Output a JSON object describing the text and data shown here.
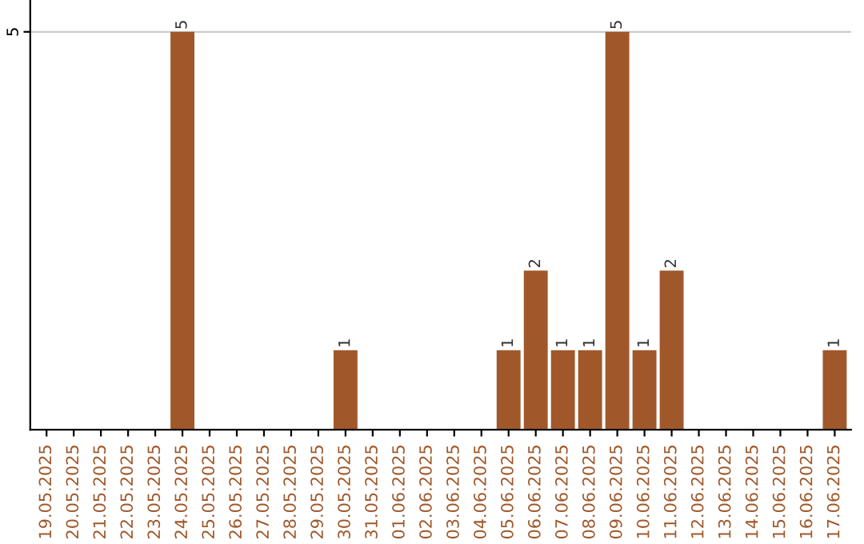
{
  "chart_data": {
    "type": "bar",
    "categories": [
      "19.05.2025",
      "20.05.2025",
      "21.05.2025",
      "22.05.2025",
      "23.05.2025",
      "24.05.2025",
      "25.05.2025",
      "26.05.2025",
      "27.05.2025",
      "28.05.2025",
      "29.05.2025",
      "30.05.2025",
      "31.05.2025",
      "01.06.2025",
      "02.06.2025",
      "03.06.2025",
      "04.06.2025",
      "05.06.2025",
      "06.06.2025",
      "07.06.2025",
      "08.06.2025",
      "09.06.2025",
      "10.06.2025",
      "11.06.2025",
      "12.06.2025",
      "13.06.2025",
      "14.06.2025",
      "15.06.2025",
      "16.06.2025",
      "17.06.2025"
    ],
    "values": [
      0,
      0,
      0,
      0,
      0,
      5,
      0,
      0,
      0,
      0,
      0,
      1,
      0,
      0,
      0,
      0,
      0,
      1,
      2,
      1,
      1,
      5,
      1,
      2,
      0,
      0,
      0,
      0,
      0,
      1
    ],
    "value_labels": [
      null,
      null,
      null,
      null,
      null,
      "5",
      null,
      null,
      null,
      null,
      null,
      "1",
      null,
      null,
      null,
      null,
      null,
      "1",
      "2",
      "1",
      "1",
      "5",
      "1",
      "2",
      null,
      null,
      null,
      null,
      null,
      "1"
    ],
    "color": "#a0582a",
    "ylim": [
      0,
      5.4
    ],
    "yticks": [
      5
    ],
    "grid": "y",
    "legend": false
  }
}
